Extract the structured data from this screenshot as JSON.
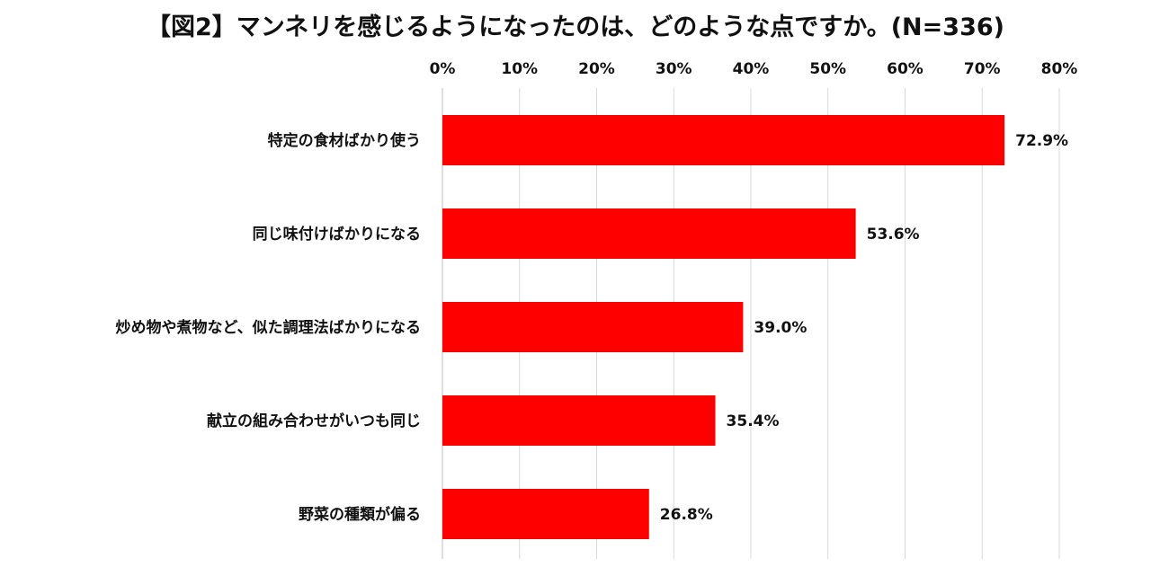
{
  "chart_data": {
    "type": "bar",
    "orientation": "horizontal",
    "title": "【図2】マンネリを感じるようになったのは、どのような点ですか。(N=336)",
    "categories": [
      "特定の食材ばかり使う",
      "同じ味付けばかりになる",
      "炒め物や煮物など、似た調理法ばかりになる",
      "献立の組み合わせがいつも同じ",
      "野菜の種類が偏る"
    ],
    "values": [
      72.9,
      53.6,
      39.0,
      35.4,
      26.8
    ],
    "data_labels": [
      "72.9%",
      "53.6%",
      "39.0%",
      "35.4%",
      "26.8%"
    ],
    "xticks": [
      "0%",
      "10%",
      "20%",
      "30%",
      "40%",
      "50%",
      "60%",
      "70%",
      "80%"
    ],
    "xlim": [
      0,
      80
    ],
    "xaxis_position": "top",
    "grid": true,
    "bar_color": "#ff0000",
    "xlabel": "",
    "ylabel": ""
  }
}
